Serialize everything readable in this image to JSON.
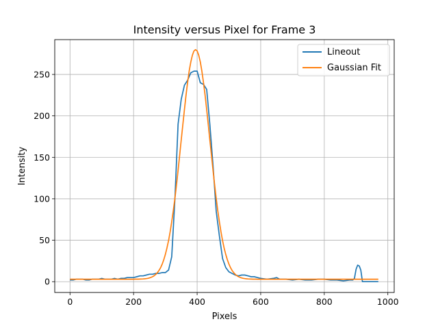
{
  "chart_data": {
    "type": "line",
    "title": "Intensity versus Pixel for Frame 3",
    "xlabel": "Pixels",
    "ylabel": "Intensity",
    "xlim": [
      -48,
      1020
    ],
    "ylim": [
      -13,
      292
    ],
    "xticks": [
      0,
      200,
      400,
      600,
      800,
      1000
    ],
    "yticks": [
      0,
      50,
      100,
      150,
      200,
      250
    ],
    "grid": true,
    "legend_position": "top-right",
    "series": [
      {
        "name": "Lineout",
        "color": "#1f77b4",
        "x": [
          0,
          10,
          20,
          30,
          40,
          50,
          60,
          70,
          80,
          90,
          100,
          110,
          120,
          130,
          140,
          150,
          160,
          170,
          180,
          190,
          200,
          210,
          220,
          230,
          240,
          250,
          260,
          270,
          280,
          290,
          300,
          310,
          320,
          330,
          340,
          350,
          360,
          370,
          380,
          390,
          400,
          410,
          420,
          430,
          440,
          450,
          460,
          470,
          480,
          490,
          500,
          510,
          520,
          530,
          540,
          550,
          560,
          570,
          580,
          590,
          600,
          620,
          640,
          650,
          660,
          680,
          700,
          720,
          740,
          760,
          780,
          800,
          820,
          840,
          860,
          880,
          890,
          895,
          900,
          905,
          910,
          915,
          920,
          940,
          970
        ],
        "y": [
          2,
          2,
          3,
          3,
          3,
          2,
          2,
          3,
          3,
          3,
          4,
          3,
          3,
          3,
          4,
          3,
          4,
          4,
          5,
          5,
          5,
          6,
          7,
          7,
          8,
          9,
          9,
          10,
          10,
          11,
          11,
          14,
          30,
          100,
          190,
          220,
          237,
          243,
          252,
          254,
          254,
          240,
          238,
          232,
          190,
          140,
          85,
          55,
          28,
          17,
          12,
          10,
          8,
          7,
          8,
          8,
          7,
          6,
          6,
          5,
          4,
          3,
          4,
          5,
          3,
          3,
          2,
          3,
          2,
          2,
          3,
          3,
          2,
          2,
          1,
          2,
          2,
          4,
          15,
          20,
          19,
          14,
          0,
          0,
          0
        ]
      },
      {
        "name": "Gaussian Fit",
        "color": "#ff7f0e",
        "fit": {
          "amplitude": 277,
          "center": 395,
          "sigma": 45,
          "offset": 3,
          "x_start": 0,
          "x_end": 970
        }
      }
    ]
  }
}
